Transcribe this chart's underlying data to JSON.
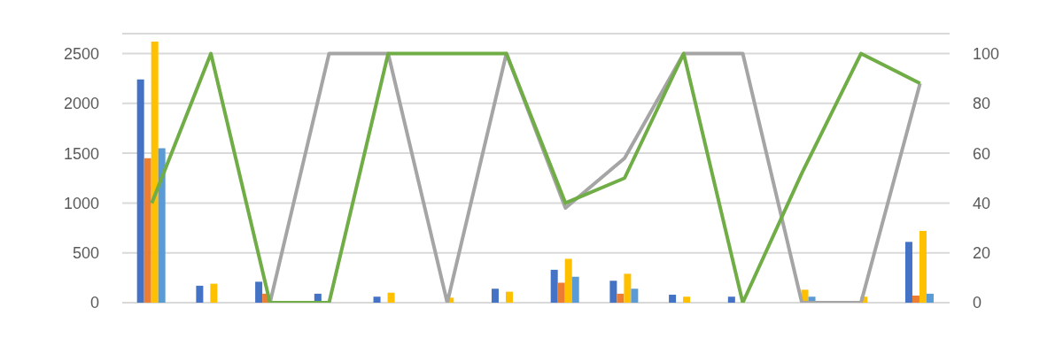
{
  "chart_data": {
    "type": "bar",
    "categories": [
      null,
      null,
      null,
      null,
      null,
      null,
      null,
      null,
      null,
      null,
      null,
      null,
      null,
      null
    ],
    "series": [
      {
        "color": "#4472c4",
        "values": [
          2240,
          170,
          210,
          90,
          60,
          0,
          140,
          330,
          220,
          80,
          60,
          0,
          0,
          610
        ]
      },
      {
        "color": "#ed7d31",
        "values": [
          1450,
          0,
          90,
          0,
          0,
          0,
          0,
          200,
          90,
          0,
          0,
          0,
          0,
          70
        ]
      },
      {
        "color": "#ffc000",
        "values": [
          2620,
          190,
          0,
          0,
          100,
          50,
          110,
          440,
          290,
          60,
          0,
          130,
          60,
          720
        ]
      },
      {
        "color": "#5b9bd5",
        "values": [
          1550,
          0,
          0,
          0,
          0,
          0,
          0,
          260,
          140,
          0,
          0,
          60,
          0,
          90
        ]
      },
      {
        "type": "line",
        "axis": "y2",
        "color": "#a5a5a5",
        "values": [
          null,
          null,
          0,
          100,
          100,
          0,
          100,
          38,
          58,
          100,
          100,
          0,
          0,
          88
        ]
      },
      {
        "type": "line",
        "axis": "y2",
        "color": "#70ad47",
        "values": [
          40,
          100,
          0,
          0,
          100,
          100,
          100,
          40,
          50,
          100,
          0,
          52,
          100,
          88
        ]
      }
    ],
    "ylim": [
      0,
      2700
    ],
    "yticks": [
      0,
      500,
      1000,
      1500,
      2000,
      2500
    ],
    "y2lim": [
      0,
      108
    ],
    "y2ticks": [
      0,
      20,
      40,
      60,
      80,
      100
    ],
    "grid": "y",
    "tick_labels": "y",
    "marker": "none",
    "line_style": "solid"
  }
}
